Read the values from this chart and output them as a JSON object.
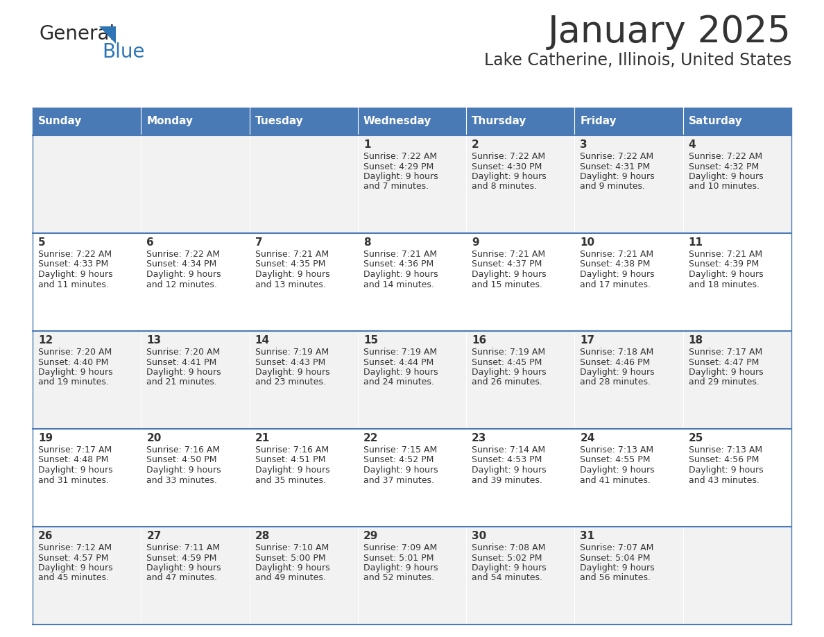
{
  "title": "January 2025",
  "subtitle": "Lake Catherine, Illinois, United States",
  "days_of_week": [
    "Sunday",
    "Monday",
    "Tuesday",
    "Wednesday",
    "Thursday",
    "Friday",
    "Saturday"
  ],
  "header_bg": "#4a7ab5",
  "header_text": "#FFFFFF",
  "cell_bg_odd": "#F2F2F2",
  "cell_bg_even": "#FFFFFF",
  "day_text_color": "#333333",
  "info_text_color": "#333333",
  "border_color": "#4a7ab5",
  "title_color": "#333333",
  "subtitle_color": "#333333",
  "logo_general_color": "#2b2b2b",
  "logo_blue_color": "#2E75B6",
  "calendar": [
    [
      null,
      null,
      null,
      {
        "day": 1,
        "sunrise": "7:22 AM",
        "sunset": "4:29 PM",
        "daylight": "9 hours and 7 minutes"
      },
      {
        "day": 2,
        "sunrise": "7:22 AM",
        "sunset": "4:30 PM",
        "daylight": "9 hours and 8 minutes"
      },
      {
        "day": 3,
        "sunrise": "7:22 AM",
        "sunset": "4:31 PM",
        "daylight": "9 hours and 9 minutes"
      },
      {
        "day": 4,
        "sunrise": "7:22 AM",
        "sunset": "4:32 PM",
        "daylight": "9 hours and 10 minutes"
      }
    ],
    [
      {
        "day": 5,
        "sunrise": "7:22 AM",
        "sunset": "4:33 PM",
        "daylight": "9 hours and 11 minutes"
      },
      {
        "day": 6,
        "sunrise": "7:22 AM",
        "sunset": "4:34 PM",
        "daylight": "9 hours and 12 minutes"
      },
      {
        "day": 7,
        "sunrise": "7:21 AM",
        "sunset": "4:35 PM",
        "daylight": "9 hours and 13 minutes"
      },
      {
        "day": 8,
        "sunrise": "7:21 AM",
        "sunset": "4:36 PM",
        "daylight": "9 hours and 14 minutes"
      },
      {
        "day": 9,
        "sunrise": "7:21 AM",
        "sunset": "4:37 PM",
        "daylight": "9 hours and 15 minutes"
      },
      {
        "day": 10,
        "sunrise": "7:21 AM",
        "sunset": "4:38 PM",
        "daylight": "9 hours and 17 minutes"
      },
      {
        "day": 11,
        "sunrise": "7:21 AM",
        "sunset": "4:39 PM",
        "daylight": "9 hours and 18 minutes"
      }
    ],
    [
      {
        "day": 12,
        "sunrise": "7:20 AM",
        "sunset": "4:40 PM",
        "daylight": "9 hours and 19 minutes"
      },
      {
        "day": 13,
        "sunrise": "7:20 AM",
        "sunset": "4:41 PM",
        "daylight": "9 hours and 21 minutes"
      },
      {
        "day": 14,
        "sunrise": "7:19 AM",
        "sunset": "4:43 PM",
        "daylight": "9 hours and 23 minutes"
      },
      {
        "day": 15,
        "sunrise": "7:19 AM",
        "sunset": "4:44 PM",
        "daylight": "9 hours and 24 minutes"
      },
      {
        "day": 16,
        "sunrise": "7:19 AM",
        "sunset": "4:45 PM",
        "daylight": "9 hours and 26 minutes"
      },
      {
        "day": 17,
        "sunrise": "7:18 AM",
        "sunset": "4:46 PM",
        "daylight": "9 hours and 28 minutes"
      },
      {
        "day": 18,
        "sunrise": "7:17 AM",
        "sunset": "4:47 PM",
        "daylight": "9 hours and 29 minutes"
      }
    ],
    [
      {
        "day": 19,
        "sunrise": "7:17 AM",
        "sunset": "4:48 PM",
        "daylight": "9 hours and 31 minutes"
      },
      {
        "day": 20,
        "sunrise": "7:16 AM",
        "sunset": "4:50 PM",
        "daylight": "9 hours and 33 minutes"
      },
      {
        "day": 21,
        "sunrise": "7:16 AM",
        "sunset": "4:51 PM",
        "daylight": "9 hours and 35 minutes"
      },
      {
        "day": 22,
        "sunrise": "7:15 AM",
        "sunset": "4:52 PM",
        "daylight": "9 hours and 37 minutes"
      },
      {
        "day": 23,
        "sunrise": "7:14 AM",
        "sunset": "4:53 PM",
        "daylight": "9 hours and 39 minutes"
      },
      {
        "day": 24,
        "sunrise": "7:13 AM",
        "sunset": "4:55 PM",
        "daylight": "9 hours and 41 minutes"
      },
      {
        "day": 25,
        "sunrise": "7:13 AM",
        "sunset": "4:56 PM",
        "daylight": "9 hours and 43 minutes"
      }
    ],
    [
      {
        "day": 26,
        "sunrise": "7:12 AM",
        "sunset": "4:57 PM",
        "daylight": "9 hours and 45 minutes"
      },
      {
        "day": 27,
        "sunrise": "7:11 AM",
        "sunset": "4:59 PM",
        "daylight": "9 hours and 47 minutes"
      },
      {
        "day": 28,
        "sunrise": "7:10 AM",
        "sunset": "5:00 PM",
        "daylight": "9 hours and 49 minutes"
      },
      {
        "day": 29,
        "sunrise": "7:09 AM",
        "sunset": "5:01 PM",
        "daylight": "9 hours and 52 minutes"
      },
      {
        "day": 30,
        "sunrise": "7:08 AM",
        "sunset": "5:02 PM",
        "daylight": "9 hours and 54 minutes"
      },
      {
        "day": 31,
        "sunrise": "7:07 AM",
        "sunset": "5:04 PM",
        "daylight": "9 hours and 56 minutes"
      },
      null
    ]
  ]
}
